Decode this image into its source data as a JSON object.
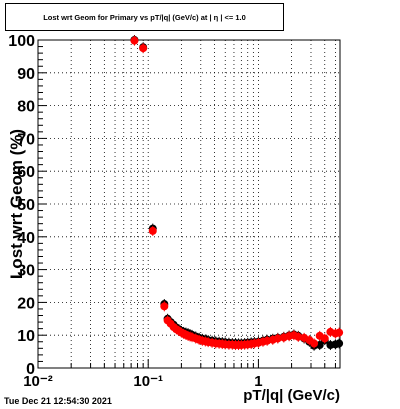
{
  "title": "Lost wrt Geom for Primary vs pT/|q| (GeV/c) at | η | <= 1.0",
  "timestamp": "Tue Dec 21 12:54:30 2021",
  "chart_data": {
    "type": "scatter",
    "xlabel": "pT/|q| (GeV/c)",
    "ylabel": "Lost wrt Geom (%)",
    "xscale": "log",
    "xlim": [
      0.01,
      5.5
    ],
    "ylim": [
      0,
      100
    ],
    "x_ticks": [
      {
        "value": 0.01,
        "label": "10⁻²"
      },
      {
        "value": 0.1,
        "label": "10⁻¹"
      },
      {
        "value": 1,
        "label": "1"
      }
    ],
    "y_ticks": [
      0,
      10,
      20,
      30,
      40,
      50,
      60,
      70,
      80,
      90,
      100
    ],
    "grid": true,
    "series": [
      {
        "color": "#000000",
        "marker": "circle",
        "x": [
          0.075,
          0.09,
          0.11,
          0.14,
          0.15,
          0.16,
          0.17,
          0.18,
          0.19,
          0.2,
          0.21,
          0.22,
          0.23,
          0.24,
          0.25,
          0.27,
          0.29,
          0.31,
          0.33,
          0.35,
          0.38,
          0.41,
          0.44,
          0.47,
          0.5,
          0.54,
          0.58,
          0.62,
          0.66,
          0.7,
          0.75,
          0.8,
          0.86,
          0.92,
          1.0,
          1.1,
          1.2,
          1.35,
          1.5,
          1.7,
          1.9,
          2.1,
          2.3,
          2.6,
          2.9,
          3.2,
          3.6,
          4.0,
          4.5,
          5.0,
          5.4
        ],
        "y": [
          100.0,
          97.8,
          42.5,
          19.5,
          15.0,
          14.0,
          13.2,
          12.3,
          11.8,
          11.3,
          11.0,
          10.8,
          10.6,
          10.3,
          10.1,
          9.6,
          9.2,
          8.9,
          8.7,
          8.5,
          8.3,
          8.1,
          8.0,
          7.9,
          7.8,
          7.7,
          7.6,
          7.6,
          7.5,
          7.5,
          7.6,
          7.7,
          7.8,
          7.9,
          8.0,
          8.3,
          8.6,
          8.9,
          9.2,
          9.5,
          9.9,
          10.2,
          9.8,
          9.0,
          8.0,
          6.8,
          7.0,
          8.5,
          7.0,
          7.2,
          7.5
        ]
      },
      {
        "color": "#ff0000",
        "marker": "circle",
        "x": [
          0.075,
          0.09,
          0.11,
          0.14,
          0.15,
          0.16,
          0.17,
          0.18,
          0.19,
          0.2,
          0.21,
          0.22,
          0.23,
          0.24,
          0.25,
          0.27,
          0.29,
          0.31,
          0.33,
          0.35,
          0.38,
          0.41,
          0.44,
          0.47,
          0.5,
          0.54,
          0.58,
          0.62,
          0.66,
          0.7,
          0.75,
          0.8,
          0.86,
          0.92,
          1.0,
          1.1,
          1.2,
          1.35,
          1.5,
          1.7,
          1.9,
          2.1,
          2.3,
          2.6,
          2.9,
          3.2,
          3.6,
          4.0,
          4.5,
          5.0,
          5.4
        ],
        "y": [
          99.8,
          97.5,
          41.8,
          18.8,
          14.5,
          13.5,
          12.5,
          11.8,
          11.3,
          10.8,
          10.4,
          10.1,
          9.8,
          9.6,
          9.4,
          9.0,
          8.6,
          8.3,
          8.1,
          7.9,
          7.7,
          7.5,
          7.4,
          7.3,
          7.2,
          7.1,
          7.1,
          7.0,
          7.0,
          7.0,
          7.1,
          7.2,
          7.3,
          7.5,
          7.7,
          8.0,
          8.3,
          8.6,
          9.0,
          9.3,
          9.7,
          10.0,
          9.5,
          9.2,
          8.5,
          7.5,
          9.8,
          9.0,
          11.0,
          10.5,
          10.8
        ]
      }
    ]
  }
}
